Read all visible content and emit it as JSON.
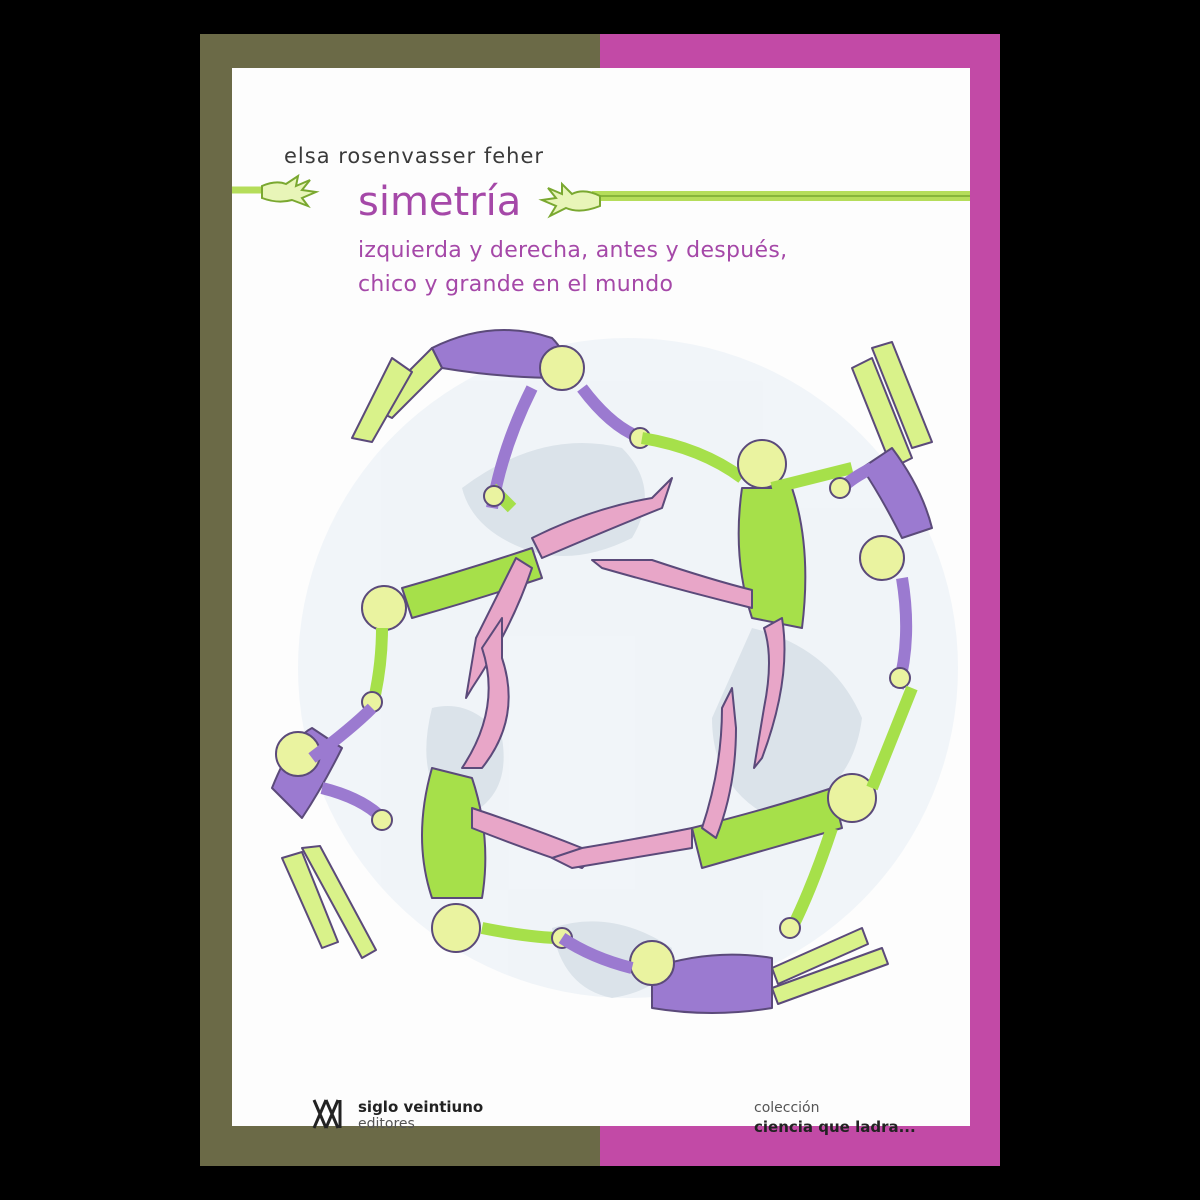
{
  "cover": {
    "author": "elsa rosenvasser feher",
    "title": "simetría",
    "subtitle_lines": [
      "izquierda y derecha, antes y después,",
      "chico y grande en el mundo"
    ],
    "publisher": {
      "logo_text": "XXI",
      "name": "siglo veintiuno",
      "sub": "editores"
    },
    "collection": {
      "label": "colección",
      "name": "ciencia que ladra..."
    }
  },
  "colors": {
    "spine_left": "#6b6a47",
    "spine_right": "#c24aa6",
    "title": "#a548a8",
    "figure_green": "#a6e04a",
    "figure_purple": "#9b7ad0",
    "figure_pink": "#e8a6c8",
    "globe": "#dbe4ec"
  }
}
